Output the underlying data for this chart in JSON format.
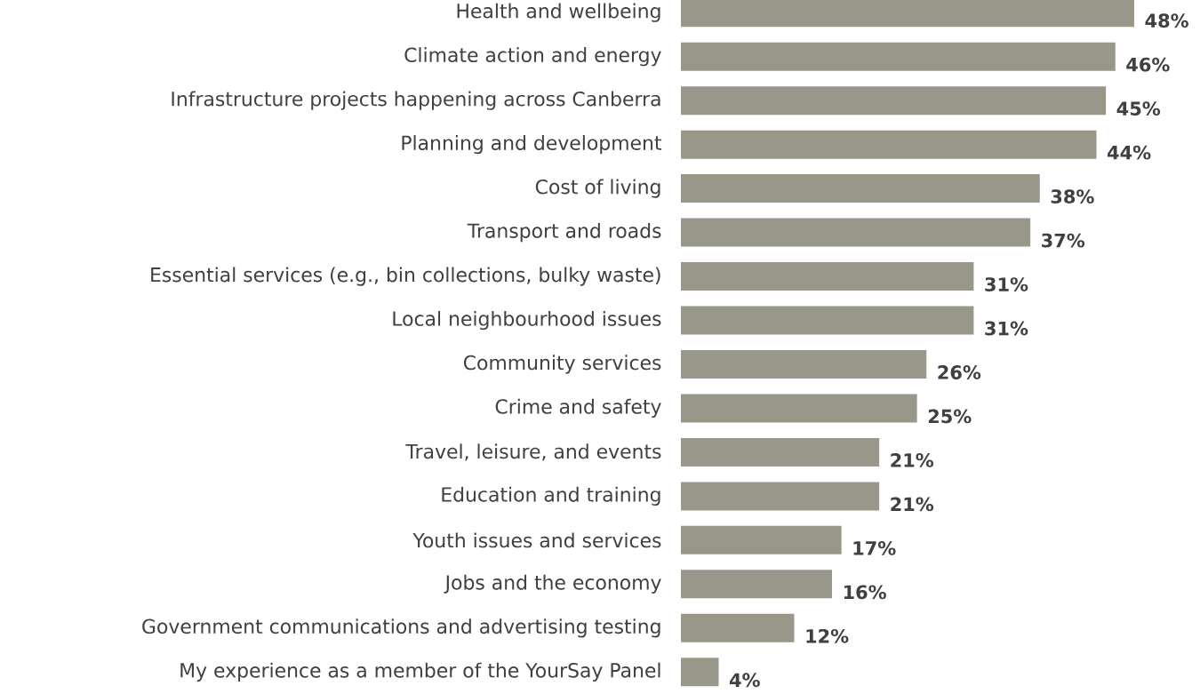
{
  "chart_data": {
    "type": "bar",
    "orientation": "horizontal",
    "categories": [
      "Health and wellbeing",
      "Climate action and energy",
      "Infrastructure projects happening across Canberra",
      "Planning and development",
      "Cost of living",
      "Transport and roads",
      "Essential services (e.g., bin collections, bulky waste)",
      "Local neighbourhood issues",
      "Community services",
      "Crime and safety",
      "Travel, leisure, and events",
      "Education and training",
      "Youth issues and services",
      "Jobs and the economy",
      "Government communications and advertising testing",
      "My experience as a member of the YourSay Panel"
    ],
    "values": [
      48,
      46,
      45,
      44,
      38,
      37,
      31,
      31,
      26,
      25,
      21,
      21,
      17,
      16,
      12,
      4
    ],
    "value_labels": [
      "48%",
      "46%",
      "45%",
      "44%",
      "38%",
      "37%",
      "31%",
      "31%",
      "26%",
      "25%",
      "21%",
      "21%",
      "17%",
      "16%",
      "12%",
      "4%"
    ],
    "color": "#99968a"
  }
}
